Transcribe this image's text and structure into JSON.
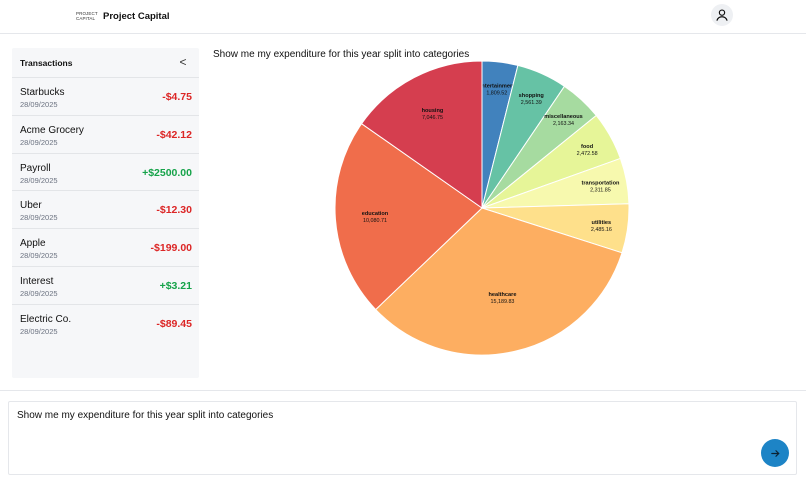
{
  "header": {
    "logo_line1": "PROJECT",
    "logo_line2": "CAPITAL",
    "title": "Project Capital",
    "avatar_icon": "user-icon"
  },
  "sidebar": {
    "title": "Transactions",
    "collapse_label": "<",
    "transactions": [
      {
        "name": "Starbucks",
        "date": "28/09/2025",
        "amount": "-$4.75",
        "type": "debit"
      },
      {
        "name": "Acme Grocery",
        "date": "28/09/2025",
        "amount": "-$42.12",
        "type": "debit"
      },
      {
        "name": "Payroll",
        "date": "28/09/2025",
        "amount": "+$2500.00",
        "type": "credit"
      },
      {
        "name": "Uber",
        "date": "28/09/2025",
        "amount": "-$12.30",
        "type": "debit"
      },
      {
        "name": "Apple",
        "date": "28/09/2025",
        "amount": "-$199.00",
        "type": "debit"
      },
      {
        "name": "Interest",
        "date": "28/09/2025",
        "amount": "+$3.21",
        "type": "credit"
      },
      {
        "name": "Electric Co.",
        "date": "28/09/2025",
        "amount": "-$89.45",
        "type": "debit"
      }
    ]
  },
  "main": {
    "query_title": "Show me my expenditure for this year split into categories"
  },
  "chart_data": {
    "type": "pie",
    "title": "",
    "categories": [
      "entertainment",
      "shopping",
      "miscellaneous",
      "food",
      "transportation",
      "utilities",
      "healthcare",
      "education",
      "housing"
    ],
    "values": [
      1809.52,
      2561.39,
      2163.34,
      2472.58,
      2311.85,
      2485.16,
      15189.83,
      10080.71,
      7046.75
    ],
    "labels": [
      "1,809.52",
      "2,561.39",
      "2,163.34",
      "2,472.58",
      "2,311.85",
      "2,485.16",
      "15,189.83",
      "10,080.71",
      "7,046.75"
    ],
    "colors": [
      "#4182bd",
      "#66c2a5",
      "#a6dba0",
      "#e6f598",
      "#f7f9ae",
      "#fee08b",
      "#fdae61",
      "#f06d4b",
      "#d53e4f"
    ],
    "start_angle_deg": 0,
    "direction": "clockwise",
    "legend": "none"
  },
  "prompt": {
    "value": "Show me my expenditure for this year split into categories",
    "send_icon": "arrow-right-icon"
  }
}
